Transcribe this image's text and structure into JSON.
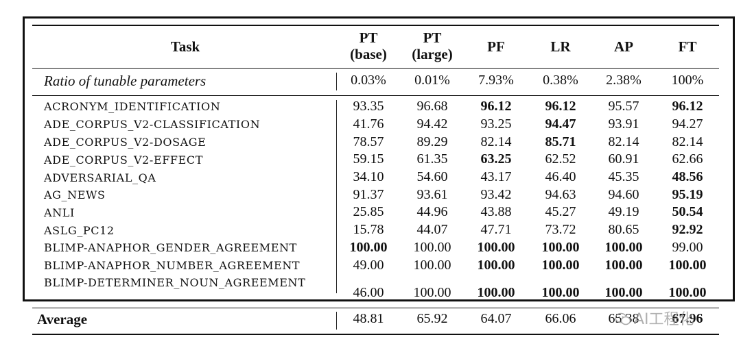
{
  "table": {
    "headers": {
      "task": "Task",
      "cols": [
        {
          "line1": "PT",
          "line2": "(base)"
        },
        {
          "line1": "PT",
          "line2": "(large)"
        },
        {
          "line1": "PF",
          "line2": ""
        },
        {
          "line1": "LR",
          "line2": ""
        },
        {
          "line1": "AP",
          "line2": ""
        },
        {
          "line1": "FT",
          "line2": ""
        }
      ]
    },
    "ratio_row": {
      "label": "Ratio of tunable parameters",
      "values": [
        "0.03%",
        "0.01%",
        "7.93%",
        "0.38%",
        "2.38%",
        "100%"
      ]
    },
    "rows": [
      {
        "task": "ACRONYM_IDENTIFICATION",
        "values": [
          "93.35",
          "96.68",
          "96.12",
          "96.12",
          "95.57",
          "96.12"
        ],
        "bold": [
          false,
          false,
          true,
          true,
          false,
          true
        ]
      },
      {
        "task": "ADE_CORPUS_V2-CLASSIFICATION",
        "values": [
          "41.76",
          "94.42",
          "93.25",
          "94.47",
          "93.91",
          "94.27"
        ],
        "bold": [
          false,
          false,
          false,
          true,
          false,
          false
        ]
      },
      {
        "task": "ADE_CORPUS_V2-DOSAGE",
        "values": [
          "78.57",
          "89.29",
          "82.14",
          "85.71",
          "82.14",
          "82.14"
        ],
        "bold": [
          false,
          false,
          false,
          true,
          false,
          false
        ]
      },
      {
        "task": "ADE_CORPUS_V2-EFFECT",
        "values": [
          "59.15",
          "61.35",
          "63.25",
          "62.52",
          "60.91",
          "62.66"
        ],
        "bold": [
          false,
          false,
          true,
          false,
          false,
          false
        ]
      },
      {
        "task": "ADVERSARIAL_QA",
        "values": [
          "34.10",
          "54.60",
          "43.17",
          "46.40",
          "45.35",
          "48.56"
        ],
        "bold": [
          false,
          false,
          false,
          false,
          false,
          true
        ]
      },
      {
        "task": "AG_NEWS",
        "values": [
          "91.37",
          "93.61",
          "93.42",
          "94.63",
          "94.60",
          "95.19"
        ],
        "bold": [
          false,
          false,
          false,
          false,
          false,
          true
        ]
      },
      {
        "task": "ANLI",
        "values": [
          "25.85",
          "44.96",
          "43.88",
          "45.27",
          "49.19",
          "50.54"
        ],
        "bold": [
          false,
          false,
          false,
          false,
          false,
          true
        ]
      },
      {
        "task": "ASLG_PC12",
        "values": [
          "15.78",
          "44.07",
          "47.71",
          "73.72",
          "80.65",
          "92.92"
        ],
        "bold": [
          false,
          false,
          false,
          false,
          false,
          true
        ]
      },
      {
        "task": "BLIMP-ANAPHOR_GENDER_AGREEMENT",
        "values": [
          "100.00",
          "100.00",
          "100.00",
          "100.00",
          "100.00",
          "99.00"
        ],
        "bold": [
          true,
          false,
          true,
          true,
          true,
          false
        ]
      },
      {
        "task": "BLIMP-ANAPHOR_NUMBER_AGREEMENT",
        "values": [
          "49.00",
          "100.00",
          "100.00",
          "100.00",
          "100.00",
          "100.00"
        ],
        "bold": [
          false,
          false,
          true,
          true,
          true,
          true
        ]
      },
      {
        "task": "BLIMP-DETERMINER_NOUN_AGREEMENT",
        "values": [
          "46.00",
          "100.00",
          "100.00",
          "100.00",
          "100.00",
          "100.00"
        ],
        "bold": [
          false,
          false,
          true,
          true,
          true,
          true
        ]
      }
    ],
    "average_row": {
      "label": "Average",
      "values": [
        "48.81",
        "65.92",
        "64.07",
        "66.06",
        "65.38",
        "67.96"
      ],
      "bold": [
        false,
        false,
        false,
        false,
        false,
        true
      ]
    }
  },
  "watermark": {
    "text": "AI工程化"
  }
}
